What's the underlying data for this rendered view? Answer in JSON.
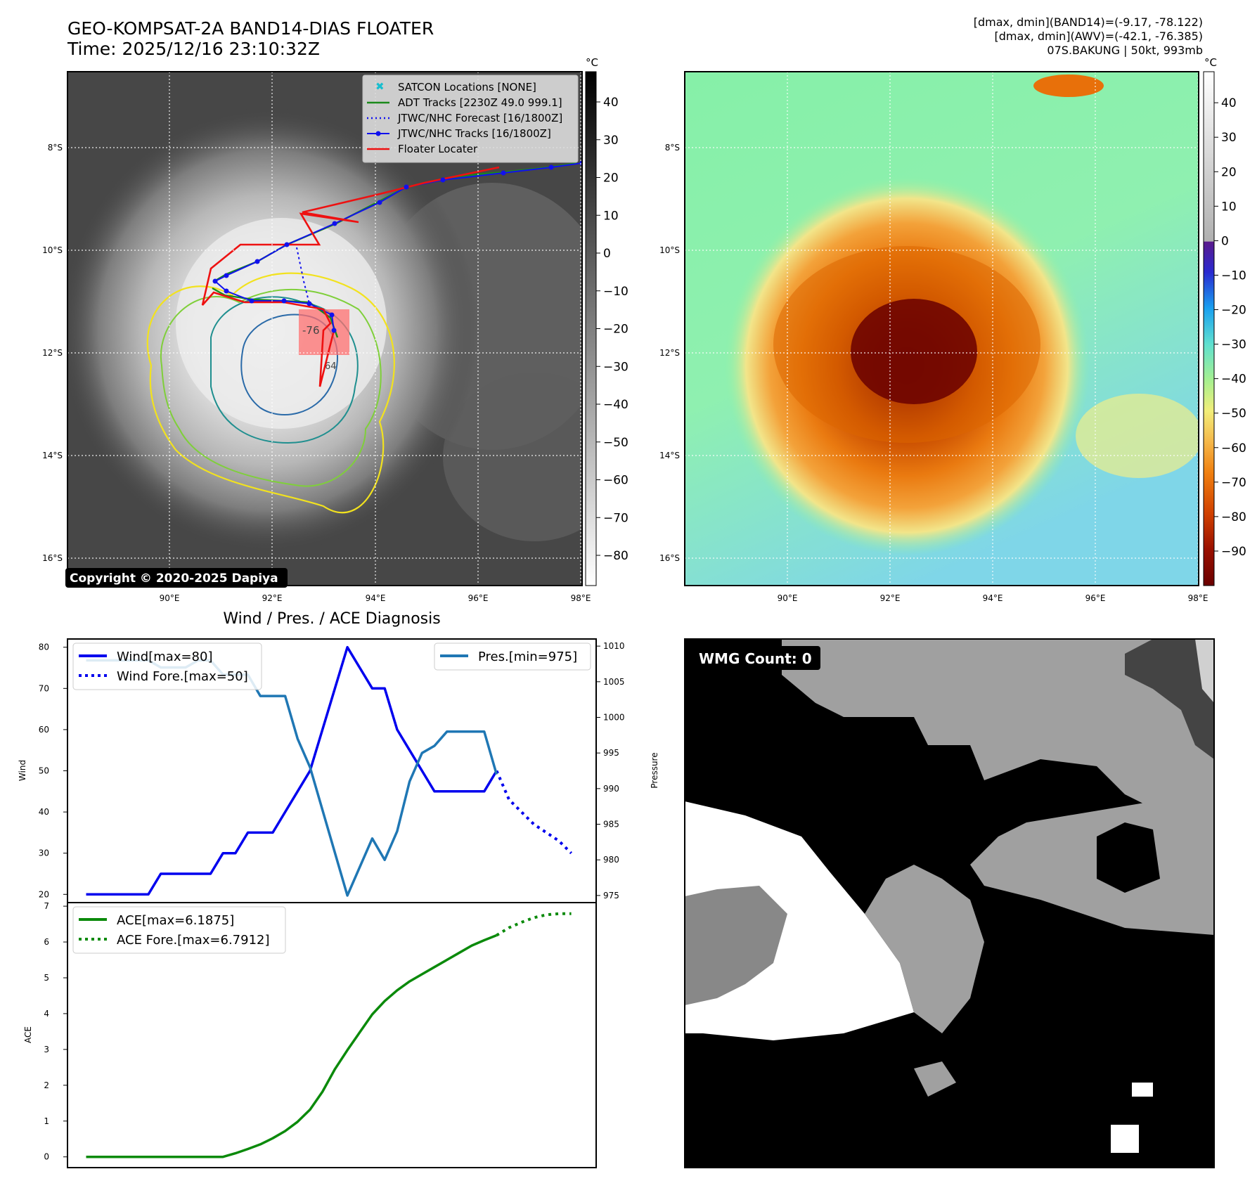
{
  "header": {
    "title": "GEO-KOMPSAT-2A BAND14-DIAS FLOATER",
    "time": "Time: 2025/12/16 23:10:32Z",
    "stats_band14": "[dmax, dmin](BAND14)=(-9.17, -78.122)",
    "stats_awv": "[dmax, dmin](AWV)=(-42.1, -76.385)",
    "storm": "07S.BAKUNG | 50kt, 993mb"
  },
  "map": {
    "lon_ticks": [
      "90°E",
      "92°E",
      "94°E",
      "96°E",
      "98°E"
    ],
    "lat_ticks": [
      "8°S",
      "10°S",
      "12°S",
      "14°S",
      "16°S"
    ],
    "copyright": "Copyright © 2020-2025 Dapiya",
    "contour_label": "-76",
    "contour_label_2": "64",
    "legend": [
      {
        "label": "SATCON Locations [NONE]",
        "color": "#17becf"
      },
      {
        "label": "ADT Tracks [2230Z 49.0 999.1]",
        "color": "#1a8a1a"
      },
      {
        "label": "JTWC/NHC Forecast [16/1800Z]",
        "color": "#1010ee"
      },
      {
        "label": "JTWC/NHC Tracks [16/1800Z]",
        "color": "#1010ee"
      },
      {
        "label": "Floater Locater",
        "color": "#ee1111"
      }
    ],
    "colorbar_gray": {
      "unit": "°C",
      "ticks": [
        "40",
        "30",
        "20",
        "10",
        "0",
        "−10",
        "−20",
        "−30",
        "−40",
        "−50",
        "−60",
        "−70",
        "−80"
      ]
    },
    "colorbar_color": {
      "unit": "°C",
      "ticks": [
        "40",
        "30",
        "20",
        "10",
        "0",
        "−10",
        "−20",
        "−30",
        "−40",
        "−50",
        "−60",
        "−70",
        "−80",
        "−90"
      ]
    }
  },
  "diag": {
    "title": "Wind / Pres. / ACE Diagnosis",
    "wind_ylabel": "Wind",
    "pres_ylabel": "Pressure",
    "ace_ylabel": "ACE",
    "legend_wind": "Wind[max=80]",
    "legend_wind_fore": "Wind Fore.[max=50]",
    "legend_pres": "Pres.[min=975]",
    "legend_ace": "ACE[max=6.1875]",
    "legend_ace_fore": "ACE Fore.[max=6.7912]",
    "wind_ticks": [
      "80",
      "70",
      "60",
      "50",
      "40",
      "30",
      "20"
    ],
    "pres_ticks": [
      "1010",
      "1005",
      "1000",
      "995",
      "990",
      "985",
      "980",
      "975"
    ],
    "ace_ticks": [
      "7",
      "6",
      "5",
      "4",
      "3",
      "2",
      "1",
      "0"
    ]
  },
  "wmg": {
    "label": "WMG Count: 0"
  },
  "chart_data": [
    {
      "type": "line",
      "name": "wind_pressure",
      "x": [
        0,
        1,
        2,
        3,
        4,
        5,
        6,
        7,
        8,
        9,
        10,
        11,
        12,
        13,
        14,
        15,
        16,
        17,
        18,
        19,
        20,
        21,
        22,
        23,
        24,
        25,
        26,
        27,
        28,
        29,
        30,
        31,
        32,
        33
      ],
      "series": [
        {
          "name": "Wind[max=80]",
          "axis": "left",
          "values": [
            20,
            20,
            20,
            20,
            20,
            20,
            25,
            25,
            25,
            25,
            25,
            30,
            30,
            35,
            35,
            35,
            40,
            45,
            50,
            60,
            70,
            80,
            75,
            70,
            70,
            60,
            55,
            50,
            45,
            45,
            45,
            45,
            45,
            50
          ]
        },
        {
          "name": "Wind Fore.[max=50]",
          "axis": "left",
          "x": [
            33,
            34,
            35,
            36,
            37,
            38,
            39
          ],
          "values": [
            50,
            43,
            40,
            37,
            35,
            33,
            30
          ]
        },
        {
          "name": "Pres.[min=975]",
          "axis": "right",
          "values": [
            1008,
            1008,
            1008,
            1008,
            1008,
            1008,
            1007,
            1007,
            1007,
            1008,
            1008,
            1006,
            1006,
            1006,
            1003,
            1003,
            1003,
            997,
            993,
            987,
            981,
            975,
            979,
            983,
            980,
            984,
            991,
            995,
            996,
            998,
            998,
            998,
            998,
            992
          ]
        }
      ],
      "ylim_left": [
        18,
        82
      ],
      "ylim_right": [
        974,
        1011
      ]
    },
    {
      "type": "line",
      "name": "ace",
      "series": [
        {
          "name": "ACE[max=6.1875]",
          "x": [
            0,
            1,
            2,
            3,
            4,
            5,
            6,
            7,
            8,
            9,
            10,
            11,
            12,
            13,
            14,
            15,
            16,
            17,
            18,
            19,
            20,
            21,
            22,
            23,
            24,
            25,
            26,
            27,
            28,
            29,
            30,
            31,
            32,
            33
          ],
          "values": [
            0,
            0,
            0,
            0,
            0,
            0,
            0,
            0,
            0,
            0,
            0,
            0,
            0.1,
            0.22,
            0.35,
            0.52,
            0.72,
            0.98,
            1.32,
            1.82,
            2.45,
            2.98,
            3.48,
            3.98,
            4.35,
            4.65,
            4.9,
            5.1,
            5.3,
            5.5,
            5.7,
            5.9,
            6.05,
            6.1875
          ]
        },
        {
          "name": "ACE Fore.[max=6.7912]",
          "x": [
            33,
            34,
            35,
            36,
            37,
            38,
            39
          ],
          "values": [
            6.1875,
            6.4,
            6.55,
            6.68,
            6.76,
            6.79,
            6.7912
          ]
        }
      ],
      "ylim": [
        -0.3,
        7.1
      ]
    }
  ]
}
